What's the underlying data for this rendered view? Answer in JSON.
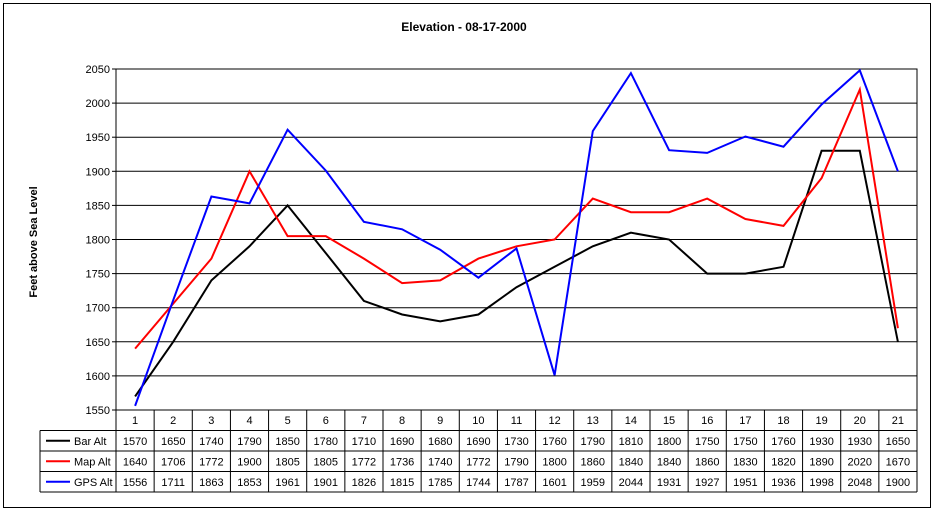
{
  "chart_data": {
    "type": "line",
    "title": "Elevation - 08-17-2000",
    "xlabel": "",
    "ylabel": "Feet above Sea Level",
    "categories": [
      "1",
      "2",
      "3",
      "4",
      "5",
      "6",
      "7",
      "8",
      "9",
      "10",
      "11",
      "12",
      "13",
      "14",
      "15",
      "16",
      "17",
      "18",
      "19",
      "20",
      "21"
    ],
    "ylim": [
      1550,
      2050
    ],
    "yticks": [
      "1550",
      "1600",
      "1650",
      "1700",
      "1750",
      "1800",
      "1850",
      "1900",
      "1950",
      "2000",
      "2050"
    ],
    "grid": true,
    "legend": "data-table",
    "series": [
      {
        "name": "Bar Alt",
        "color": "#000000",
        "values": [
          1570,
          1650,
          1740,
          1790,
          1850,
          1780,
          1710,
          1690,
          1680,
          1690,
          1730,
          1760,
          1790,
          1810,
          1800,
          1750,
          1750,
          1760,
          1930,
          1930,
          1650
        ]
      },
      {
        "name": "Map Alt",
        "color": "#ff0000",
        "values": [
          1640,
          1706,
          1772,
          1900,
          1805,
          1805,
          1772,
          1736,
          1740,
          1772,
          1790,
          1800,
          1860,
          1840,
          1840,
          1860,
          1830,
          1820,
          1890,
          2020,
          1670
        ]
      },
      {
        "name": "GPS Alt",
        "color": "#0000ff",
        "values": [
          1556,
          1711,
          1863,
          1853,
          1961,
          1901,
          1826,
          1815,
          1785,
          1744,
          1787,
          1601,
          1959,
          2044,
          1931,
          1927,
          1951,
          1936,
          1998,
          2048,
          1900
        ]
      }
    ]
  }
}
